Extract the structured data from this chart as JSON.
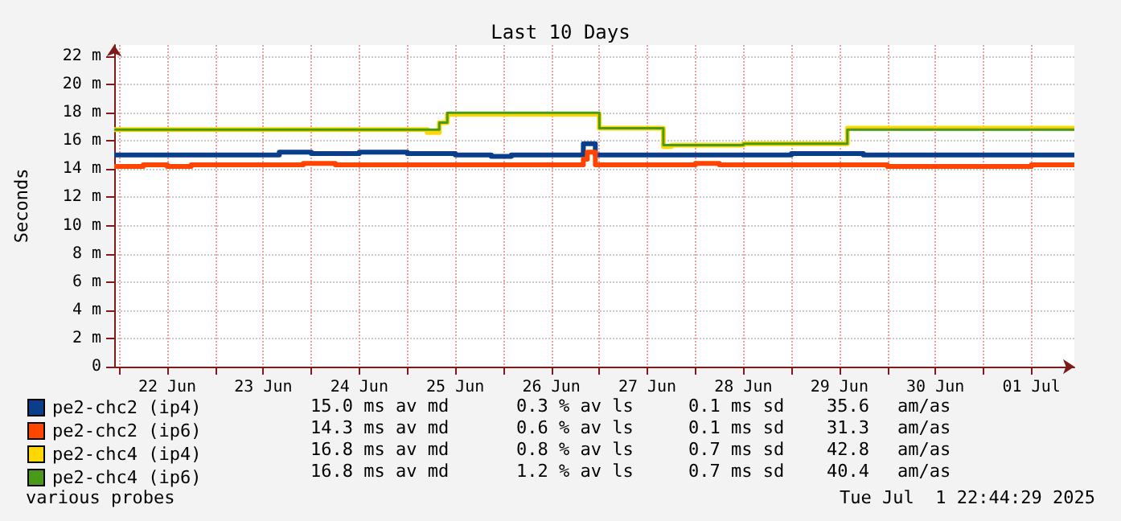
{
  "chart_data": {
    "type": "step",
    "title": "Last 10 Days",
    "ylabel": "Seconds",
    "xlim": [
      "2025-06-21T22:44",
      "2025-07-01T22:44"
    ],
    "xticks": [
      {
        "value": "2025-06-22T00:00",
        "label": null
      },
      {
        "value": "2025-06-22T12:00",
        "label": "22 Jun"
      },
      {
        "value": "2025-06-23T00:00",
        "label": null
      },
      {
        "value": "2025-06-23T12:00",
        "label": "23 Jun"
      },
      {
        "value": "2025-06-24T00:00",
        "label": null
      },
      {
        "value": "2025-06-24T12:00",
        "label": "24 Jun"
      },
      {
        "value": "2025-06-25T00:00",
        "label": null
      },
      {
        "value": "2025-06-25T12:00",
        "label": "25 Jun"
      },
      {
        "value": "2025-06-26T00:00",
        "label": null
      },
      {
        "value": "2025-06-26T12:00",
        "label": "26 Jun"
      },
      {
        "value": "2025-06-27T00:00",
        "label": null
      },
      {
        "value": "2025-06-27T12:00",
        "label": "27 Jun"
      },
      {
        "value": "2025-06-28T00:00",
        "label": null
      },
      {
        "value": "2025-06-28T12:00",
        "label": "28 Jun"
      },
      {
        "value": "2025-06-29T00:00",
        "label": null
      },
      {
        "value": "2025-06-29T12:00",
        "label": "29 Jun"
      },
      {
        "value": "2025-06-30T00:00",
        "label": null
      },
      {
        "value": "2025-06-30T12:00",
        "label": "30 Jun"
      },
      {
        "value": "2025-07-01T00:00",
        "label": null
      },
      {
        "value": "2025-07-01T12:00",
        "label": "01 Jul"
      }
    ],
    "ylim": [
      0,
      22.8
    ],
    "yticks": [
      0,
      {
        "value": 2,
        "label": "2 m"
      },
      {
        "value": 4,
        "label": "4 m"
      },
      {
        "value": 6,
        "label": "6 m"
      },
      {
        "value": 8,
        "label": "8 m"
      },
      {
        "value": 10,
        "label": "10 m"
      },
      {
        "value": 12,
        "label": "12 m"
      },
      {
        "value": 14,
        "label": "14 m"
      },
      {
        "value": 16,
        "label": "16 m"
      },
      {
        "value": 18,
        "label": "18 m"
      },
      {
        "value": 20,
        "label": "20 m"
      },
      {
        "value": 22,
        "label": "22 m"
      }
    ],
    "grid": true,
    "legend": "bottom left",
    "marker": "none",
    "line_style": "solid",
    "series": [
      {
        "name": "pe2-chc2 (ip4)",
        "color": "#0a3d8a",
        "x": [
          "2025-06-21T22:44",
          "2025-06-23T16:00",
          "2025-06-24T00:00",
          "2025-06-24T12:00",
          "2025-06-25T00:00",
          "2025-06-25T12:00",
          "2025-06-25T21:00",
          "2025-06-26T02:00",
          "2025-06-26T20:00",
          "2025-06-26T23:00",
          "2025-06-29T00:00",
          "2025-06-29T18:00",
          "2025-07-01T22:44"
        ],
        "values": [
          15.0,
          15.2,
          15.1,
          15.2,
          15.1,
          15.0,
          14.9,
          15.0,
          15.8,
          15.0,
          15.1,
          15.0,
          15.0
        ]
      },
      {
        "name": "pe2-chc2 (ip6)",
        "color": "#ff4500",
        "x": [
          "2025-06-21T22:44",
          "2025-06-22T06:00",
          "2025-06-22T12:00",
          "2025-06-22T18:00",
          "2025-06-23T22:00",
          "2025-06-24T06:00",
          "2025-06-26T20:00",
          "2025-06-26T21:00",
          "2025-06-26T23:00",
          "2025-06-28T00:00",
          "2025-06-28T06:00",
          "2025-06-30T00:00",
          "2025-07-01T12:00",
          "2025-07-01T22:44"
        ],
        "values": [
          14.2,
          14.3,
          14.2,
          14.3,
          14.4,
          14.3,
          14.7,
          15.2,
          14.3,
          14.4,
          14.3,
          14.2,
          14.3,
          14.3
        ]
      },
      {
        "name": "pe2-chc4 (ip4)",
        "color": "#ffd700",
        "x": [
          "2025-06-21T22:44",
          "2025-06-25T05:00",
          "2025-06-25T08:00",
          "2025-06-25T10:00",
          "2025-06-27T00:00",
          "2025-06-27T16:00",
          "2025-06-27T18:00",
          "2025-06-28T12:00",
          "2025-06-29T14:00",
          "2025-07-01T22:44"
        ],
        "values": [
          16.8,
          16.6,
          17.3,
          17.9,
          16.9,
          15.6,
          15.7,
          15.8,
          16.9,
          16.9
        ]
      },
      {
        "name": "pe2-chc4 (ip6)",
        "color": "#4a9a1a",
        "x": [
          "2025-06-21T22:44",
          "2025-06-25T08:00",
          "2025-06-25T10:00",
          "2025-06-27T00:00",
          "2025-06-27T16:00",
          "2025-06-28T12:00",
          "2025-06-29T14:00",
          "2025-07-01T22:44"
        ],
        "values": [
          16.8,
          17.3,
          18.0,
          16.9,
          15.7,
          15.8,
          16.8,
          16.8
        ]
      }
    ],
    "annotations": [
      "15.0 ms av md",
      "0.3 % av ls",
      "0.1 ms sd",
      "35.6",
      "am/as",
      "14.3 ms av md",
      "0.6 % av ls",
      "0.1 ms sd",
      "31.3",
      "am/as",
      "16.8 ms av md",
      "0.8 % av ls",
      "0.7 ms sd",
      "42.8",
      "am/as",
      "16.8 ms av md",
      "1.2 % av ls",
      "0.7 ms sd",
      "40.4",
      "am/as",
      "various probes",
      "Tue Jul  1 22:44:29 2025"
    ]
  }
}
